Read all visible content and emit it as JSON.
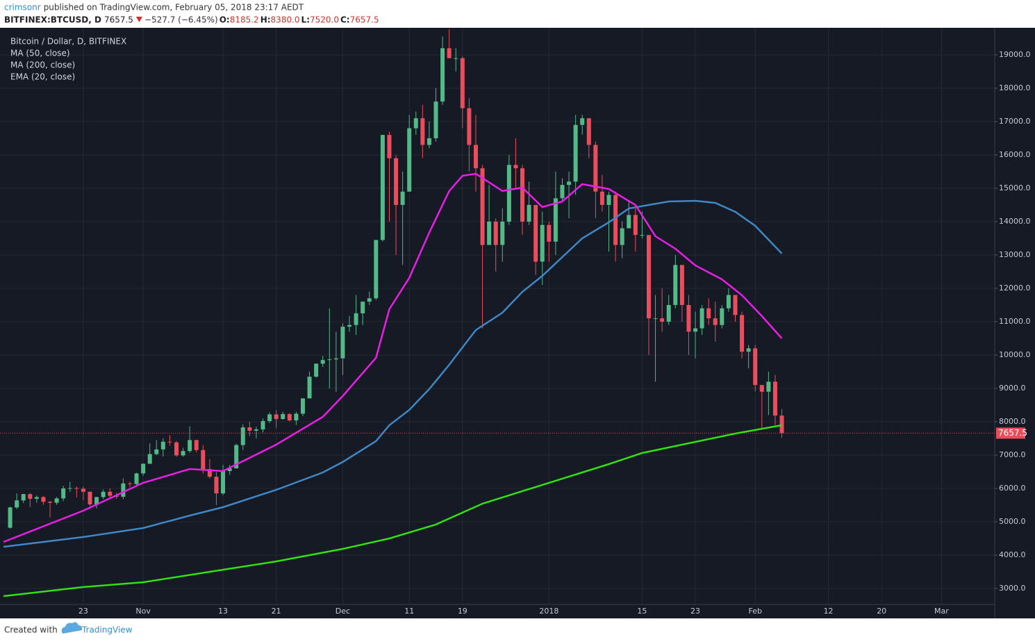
{
  "header": {
    "author": "crimsonr",
    "published": "published on TradingView.com, February 05, 2018 23:17 AEDT",
    "symbol": "BITFINEX:BTCUSD, D",
    "last": "7657.5",
    "change": "−527.7 (−6.45%)",
    "ohlc": [
      {
        "key": "O:",
        "value": "8185.2"
      },
      {
        "key": "H:",
        "value": "8380.0"
      },
      {
        "key": "L:",
        "value": "7520.0"
      },
      {
        "key": "C:",
        "value": "7657.5"
      }
    ]
  },
  "footer": {
    "created": "Created with",
    "brand": "TradingView"
  },
  "chart_data": {
    "type": "candlestick",
    "series_label": "Bitcoin / Dollar, D, BITFINEX",
    "up_color": "#53b987",
    "down_color": "#eb4d5c",
    "grid": true,
    "x": [
      "2017-10-12",
      "2017-10-13",
      "2017-10-14",
      "2017-10-15",
      "2017-10-16",
      "2017-10-17",
      "2017-10-18",
      "2017-10-19",
      "2017-10-20",
      "2017-10-21",
      "2017-10-22",
      "2017-10-23",
      "2017-10-24",
      "2017-10-25",
      "2017-10-26",
      "2017-10-27",
      "2017-10-28",
      "2017-10-29",
      "2017-10-30",
      "2017-10-31",
      "2017-11-01",
      "2017-11-02",
      "2017-11-03",
      "2017-11-04",
      "2017-11-05",
      "2017-11-06",
      "2017-11-07",
      "2017-11-08",
      "2017-11-09",
      "2017-11-10",
      "2017-11-11",
      "2017-11-12",
      "2017-11-13",
      "2017-11-14",
      "2017-11-15",
      "2017-11-16",
      "2017-11-17",
      "2017-11-18",
      "2017-11-19",
      "2017-11-20",
      "2017-11-21",
      "2017-11-22",
      "2017-11-23",
      "2017-11-24",
      "2017-11-25",
      "2017-11-26",
      "2017-11-27",
      "2017-11-28",
      "2017-11-29",
      "2017-11-30",
      "2017-12-01",
      "2017-12-02",
      "2017-12-03",
      "2017-12-04",
      "2017-12-05",
      "2017-12-06",
      "2017-12-07",
      "2017-12-08",
      "2017-12-09",
      "2017-12-10",
      "2017-12-11",
      "2017-12-12",
      "2017-12-13",
      "2017-12-14",
      "2017-12-15",
      "2017-12-16",
      "2017-12-17",
      "2017-12-18",
      "2017-12-19",
      "2017-12-20",
      "2017-12-21",
      "2017-12-22",
      "2017-12-23",
      "2017-12-24",
      "2017-12-25",
      "2017-12-26",
      "2017-12-27",
      "2017-12-28",
      "2017-12-29",
      "2017-12-30",
      "2017-12-31",
      "2018-01-01",
      "2018-01-02",
      "2018-01-03",
      "2018-01-04",
      "2018-01-05",
      "2018-01-06",
      "2018-01-07",
      "2018-01-08",
      "2018-01-09",
      "2018-01-10",
      "2018-01-11",
      "2018-01-12",
      "2018-01-13",
      "2018-01-14",
      "2018-01-15",
      "2018-01-16",
      "2018-01-17",
      "2018-01-18",
      "2018-01-19",
      "2018-01-20",
      "2018-01-21",
      "2018-01-22",
      "2018-01-23",
      "2018-01-24",
      "2018-01-25",
      "2018-01-26",
      "2018-01-27",
      "2018-01-28",
      "2018-01-29",
      "2018-01-30",
      "2018-01-31",
      "2018-02-01",
      "2018-02-02",
      "2018-02-03",
      "2018-02-04",
      "2018-02-05"
    ],
    "open": [
      4820,
      5430,
      5640,
      5830,
      5690,
      5740,
      5600,
      5570,
      5700,
      6000,
      6010,
      5990,
      5900,
      5520,
      5740,
      5900,
      5780,
      5750,
      6150,
      6130,
      6450,
      6740,
      7030,
      7170,
      7400,
      7380,
      6990,
      7120,
      7450,
      7150,
      6580,
      6350,
      5850,
      6520,
      6600,
      7300,
      7830,
      7730,
      7770,
      8020,
      8220,
      8080,
      8230,
      8040,
      8240,
      8700,
      9350,
      9740,
      9850,
      9870,
      9900,
      10850,
      10900,
      11250,
      11600,
      11700,
      13450,
      16600,
      15900,
      14500,
      14900,
      16800,
      17100,
      16300,
      16500,
      17600,
      19200,
      18900,
      18900,
      17400,
      16300,
      15600,
      13300,
      14000,
      13300,
      14000,
      15700,
      15600,
      14000,
      14500,
      12800,
      13900,
      13400,
      14700,
      15100,
      15200,
      16900,
      17100,
      16300,
      14900,
      14500,
      14800,
      13300,
      13800,
      14200,
      13600,
      13600,
      11100,
      11100,
      11000,
      11500,
      12700,
      11500,
      10700,
      10800,
      11400,
      11100,
      10900,
      11400,
      11800,
      11200,
      10100,
      10200,
      9100,
      8900,
      9200,
      8185.2
    ],
    "high": [
      5450,
      5850,
      5840,
      5860,
      5790,
      5780,
      5620,
      5740,
      6080,
      6200,
      6060,
      6060,
      5900,
      5750,
      5970,
      6000,
      5870,
      6300,
      6200,
      6470,
      6750,
      7350,
      7450,
      7500,
      7600,
      7420,
      7220,
      7860,
      7460,
      7300,
      6880,
      6500,
      6700,
      6700,
      7340,
      7920,
      8000,
      7850,
      8100,
      8280,
      8350,
      8300,
      8260,
      8300,
      8700,
      9500,
      9750,
      9970,
      11400,
      10700,
      10950,
      11170,
      11800,
      11600,
      11900,
      13450,
      16600,
      16700,
      16000,
      15500,
      17200,
      17300,
      17500,
      17000,
      18000,
      19550,
      19770,
      19200,
      18950,
      17700,
      17200,
      15700,
      15100,
      14100,
      14400,
      16000,
      16500,
      15700,
      15200,
      14500,
      14300,
      14000,
      15500,
      15300,
      15500,
      17200,
      17200,
      17100,
      16400,
      15400,
      14900,
      14900,
      14000,
      14600,
      14400,
      14300,
      13600,
      11800,
      12000,
      11800,
      13000,
      12700,
      11800,
      11300,
      11500,
      11700,
      11600,
      11500,
      12000,
      11800,
      11300,
      10300,
      10300,
      9100,
      9500,
      9400,
      8380
    ],
    "low": [
      4800,
      5380,
      5560,
      5440,
      5570,
      5510,
      5130,
      5510,
      5620,
      5900,
      5730,
      5650,
      5460,
      5400,
      5680,
      5720,
      5690,
      5680,
      6030,
      6100,
      6380,
      6730,
      7000,
      6960,
      7280,
      6950,
      6950,
      7070,
      7080,
      6450,
      6300,
      5500,
      5800,
      6410,
      6600,
      7150,
      7570,
      7500,
      7680,
      7960,
      7820,
      8060,
      8010,
      7900,
      8170,
      8700,
      9320,
      9640,
      9000,
      8900,
      9400,
      10700,
      10600,
      10900,
      11500,
      11650,
      13400,
      14000,
      13000,
      12700,
      14900,
      16600,
      15900,
      16200,
      16400,
      17500,
      18900,
      18500,
      16800,
      15500,
      14900,
      10800,
      13300,
      12500,
      12800,
      13900,
      15000,
      13600,
      13900,
      12400,
      12100,
      12800,
      13000,
      14600,
      14100,
      14800,
      16600,
      15900,
      14100,
      14300,
      13100,
      12800,
      12900,
      13800,
      13100,
      13500,
      10000,
      9200,
      10700,
      10900,
      11400,
      11000,
      10000,
      9900,
      10600,
      10900,
      10400,
      10800,
      11300,
      11000,
      9900,
      9600,
      8900,
      7800,
      8200,
      7900,
      7520
    ],
    "close": [
      5430,
      5640,
      5830,
      5690,
      5740,
      5600,
      5570,
      5700,
      6000,
      6010,
      5990,
      5900,
      5520,
      5740,
      5900,
      5780,
      5750,
      6150,
      6130,
      6450,
      6740,
      7030,
      7170,
      7400,
      7380,
      6990,
      7120,
      7450,
      7150,
      6580,
      6350,
      5850,
      6520,
      6600,
      7300,
      7830,
      7730,
      7770,
      8020,
      8220,
      8080,
      8230,
      8040,
      8240,
      8700,
      9350,
      9740,
      9850,
      9870,
      9900,
      10850,
      10900,
      11250,
      11600,
      11700,
      13450,
      16600,
      15900,
      14500,
      14900,
      16800,
      17100,
      16300,
      16500,
      17600,
      19200,
      18900,
      18900,
      17400,
      16300,
      15600,
      13300,
      14000,
      13300,
      14000,
      15700,
      15600,
      14000,
      14500,
      12800,
      13900,
      13400,
      14700,
      15100,
      15200,
      16900,
      17100,
      16300,
      14900,
      14500,
      14800,
      13300,
      13800,
      14200,
      13600,
      13600,
      11100,
      11100,
      11000,
      11500,
      12700,
      11500,
      10700,
      10800,
      11400,
      11100,
      10900,
      11400,
      11800,
      11200,
      10100,
      10200,
      9100,
      8900,
      9200,
      8185.2,
      7657.5
    ],
    "indicators": [
      {
        "name": "MA (50, close)",
        "color": "#3f88c5",
        "x": [
          "2017-10-11",
          "2017-10-23",
          "2017-11-01",
          "2017-11-08",
          "2017-11-13",
          "2017-11-21",
          "2017-11-28",
          "2017-12-01",
          "2017-12-06",
          "2017-12-08",
          "2017-12-11",
          "2017-12-14",
          "2017-12-17",
          "2017-12-19",
          "2017-12-21",
          "2017-12-25",
          "2017-12-28",
          "2017-12-31",
          "2018-01-03",
          "2018-01-06",
          "2018-01-10",
          "2018-01-13",
          "2018-01-16",
          "2018-01-19",
          "2018-01-23",
          "2018-01-26",
          "2018-01-29",
          "2018-02-01",
          "2018-02-05"
        ],
        "values": [
          4250,
          4542,
          4812,
          5187,
          5437,
          5958,
          6479,
          6792,
          7417,
          7896,
          8354,
          8979,
          9708,
          10229,
          10750,
          11271,
          11896,
          12375,
          12937,
          13500,
          13979,
          14396,
          14500,
          14604,
          14625,
          14562,
          14292,
          13875,
          13042
        ]
      },
      {
        "name": "MA (200, close)",
        "color": "#33e010",
        "x": [
          "2017-10-11",
          "2017-10-23",
          "2017-11-01",
          "2017-11-13",
          "2017-11-21",
          "2017-12-01",
          "2017-12-08",
          "2017-12-15",
          "2017-12-22",
          "2018-01-01",
          "2018-01-10",
          "2018-01-15",
          "2018-01-22",
          "2018-01-29",
          "2018-02-05"
        ],
        "values": [
          2771,
          3042,
          3187,
          3562,
          3812,
          4187,
          4500,
          4917,
          5542,
          6167,
          6729,
          7062,
          7354,
          7646,
          7896
        ]
      },
      {
        "name": "EMA (20, close)",
        "color": "#ea1ee6",
        "x": [
          "2017-10-11",
          "2017-10-23",
          "2017-11-01",
          "2017-11-08",
          "2017-11-13",
          "2017-11-21",
          "2017-11-28",
          "2017-12-01",
          "2017-12-06",
          "2017-12-08",
          "2017-12-11",
          "2017-12-14",
          "2017-12-17",
          "2017-12-19",
          "2017-12-21",
          "2017-12-25",
          "2017-12-28",
          "2017-12-31",
          "2018-01-03",
          "2018-01-06",
          "2018-01-10",
          "2018-01-14",
          "2018-01-17",
          "2018-01-20",
          "2018-01-23",
          "2018-01-27",
          "2018-01-30",
          "2018-02-02",
          "2018-02-05"
        ],
        "values": [
          4396,
          5333,
          6167,
          6583,
          6520,
          7313,
          8146,
          8771,
          9917,
          11375,
          12313,
          13667,
          14917,
          15375,
          15437,
          14917,
          15021,
          14437,
          14604,
          15125,
          14979,
          14500,
          13562,
          13187,
          12687,
          12271,
          11792,
          11167,
          10500
        ]
      }
    ],
    "xlim": [
      "2017-10-11",
      "2018-03-09"
    ],
    "xticks": [
      {
        "value": "2017-10-23",
        "label": "23"
      },
      {
        "value": "2017-11-01",
        "label": "Nov"
      },
      {
        "value": "2017-11-13",
        "label": "13"
      },
      {
        "value": "2017-11-21",
        "label": "21"
      },
      {
        "value": "2017-12-01",
        "label": "Dec"
      },
      {
        "value": "2017-12-11",
        "label": "11"
      },
      {
        "value": "2017-12-19",
        "label": "19"
      },
      {
        "value": "2018-01-01",
        "label": "2018"
      },
      {
        "value": "2018-01-15",
        "label": "15"
      },
      {
        "value": "2018-01-23",
        "label": "23"
      },
      {
        "value": "2018-02-01",
        "label": "Feb"
      },
      {
        "value": "2018-02-12",
        "label": "12"
      },
      {
        "value": "2018-02-20",
        "label": "20"
      },
      {
        "value": "2018-03-01",
        "label": "Mar"
      }
    ],
    "ylim": [
      2520,
      19770
    ],
    "yticks": [
      {
        "value": 3000,
        "label": "3000.0"
      },
      {
        "value": 4000,
        "label": "4000.0"
      },
      {
        "value": 5000,
        "label": "5000.0"
      },
      {
        "value": 6000,
        "label": "6000.0"
      },
      {
        "value": 7000,
        "label": "7000.0"
      },
      {
        "value": 8000,
        "label": "8000.0"
      },
      {
        "value": 9000,
        "label": "9000.0"
      },
      {
        "value": 10000,
        "label": "10000.0"
      },
      {
        "value": 11000,
        "label": "11000.0"
      },
      {
        "value": 12000,
        "label": "12000.0"
      },
      {
        "value": 13000,
        "label": "13000.0"
      },
      {
        "value": 14000,
        "label": "14000.0"
      },
      {
        "value": 15000,
        "label": "15000.0"
      },
      {
        "value": 16000,
        "label": "16000.0"
      },
      {
        "value": 17000,
        "label": "17000.0"
      },
      {
        "value": 18000,
        "label": "18000.0"
      },
      {
        "value": 19000,
        "label": "19000.0"
      }
    ]
  }
}
